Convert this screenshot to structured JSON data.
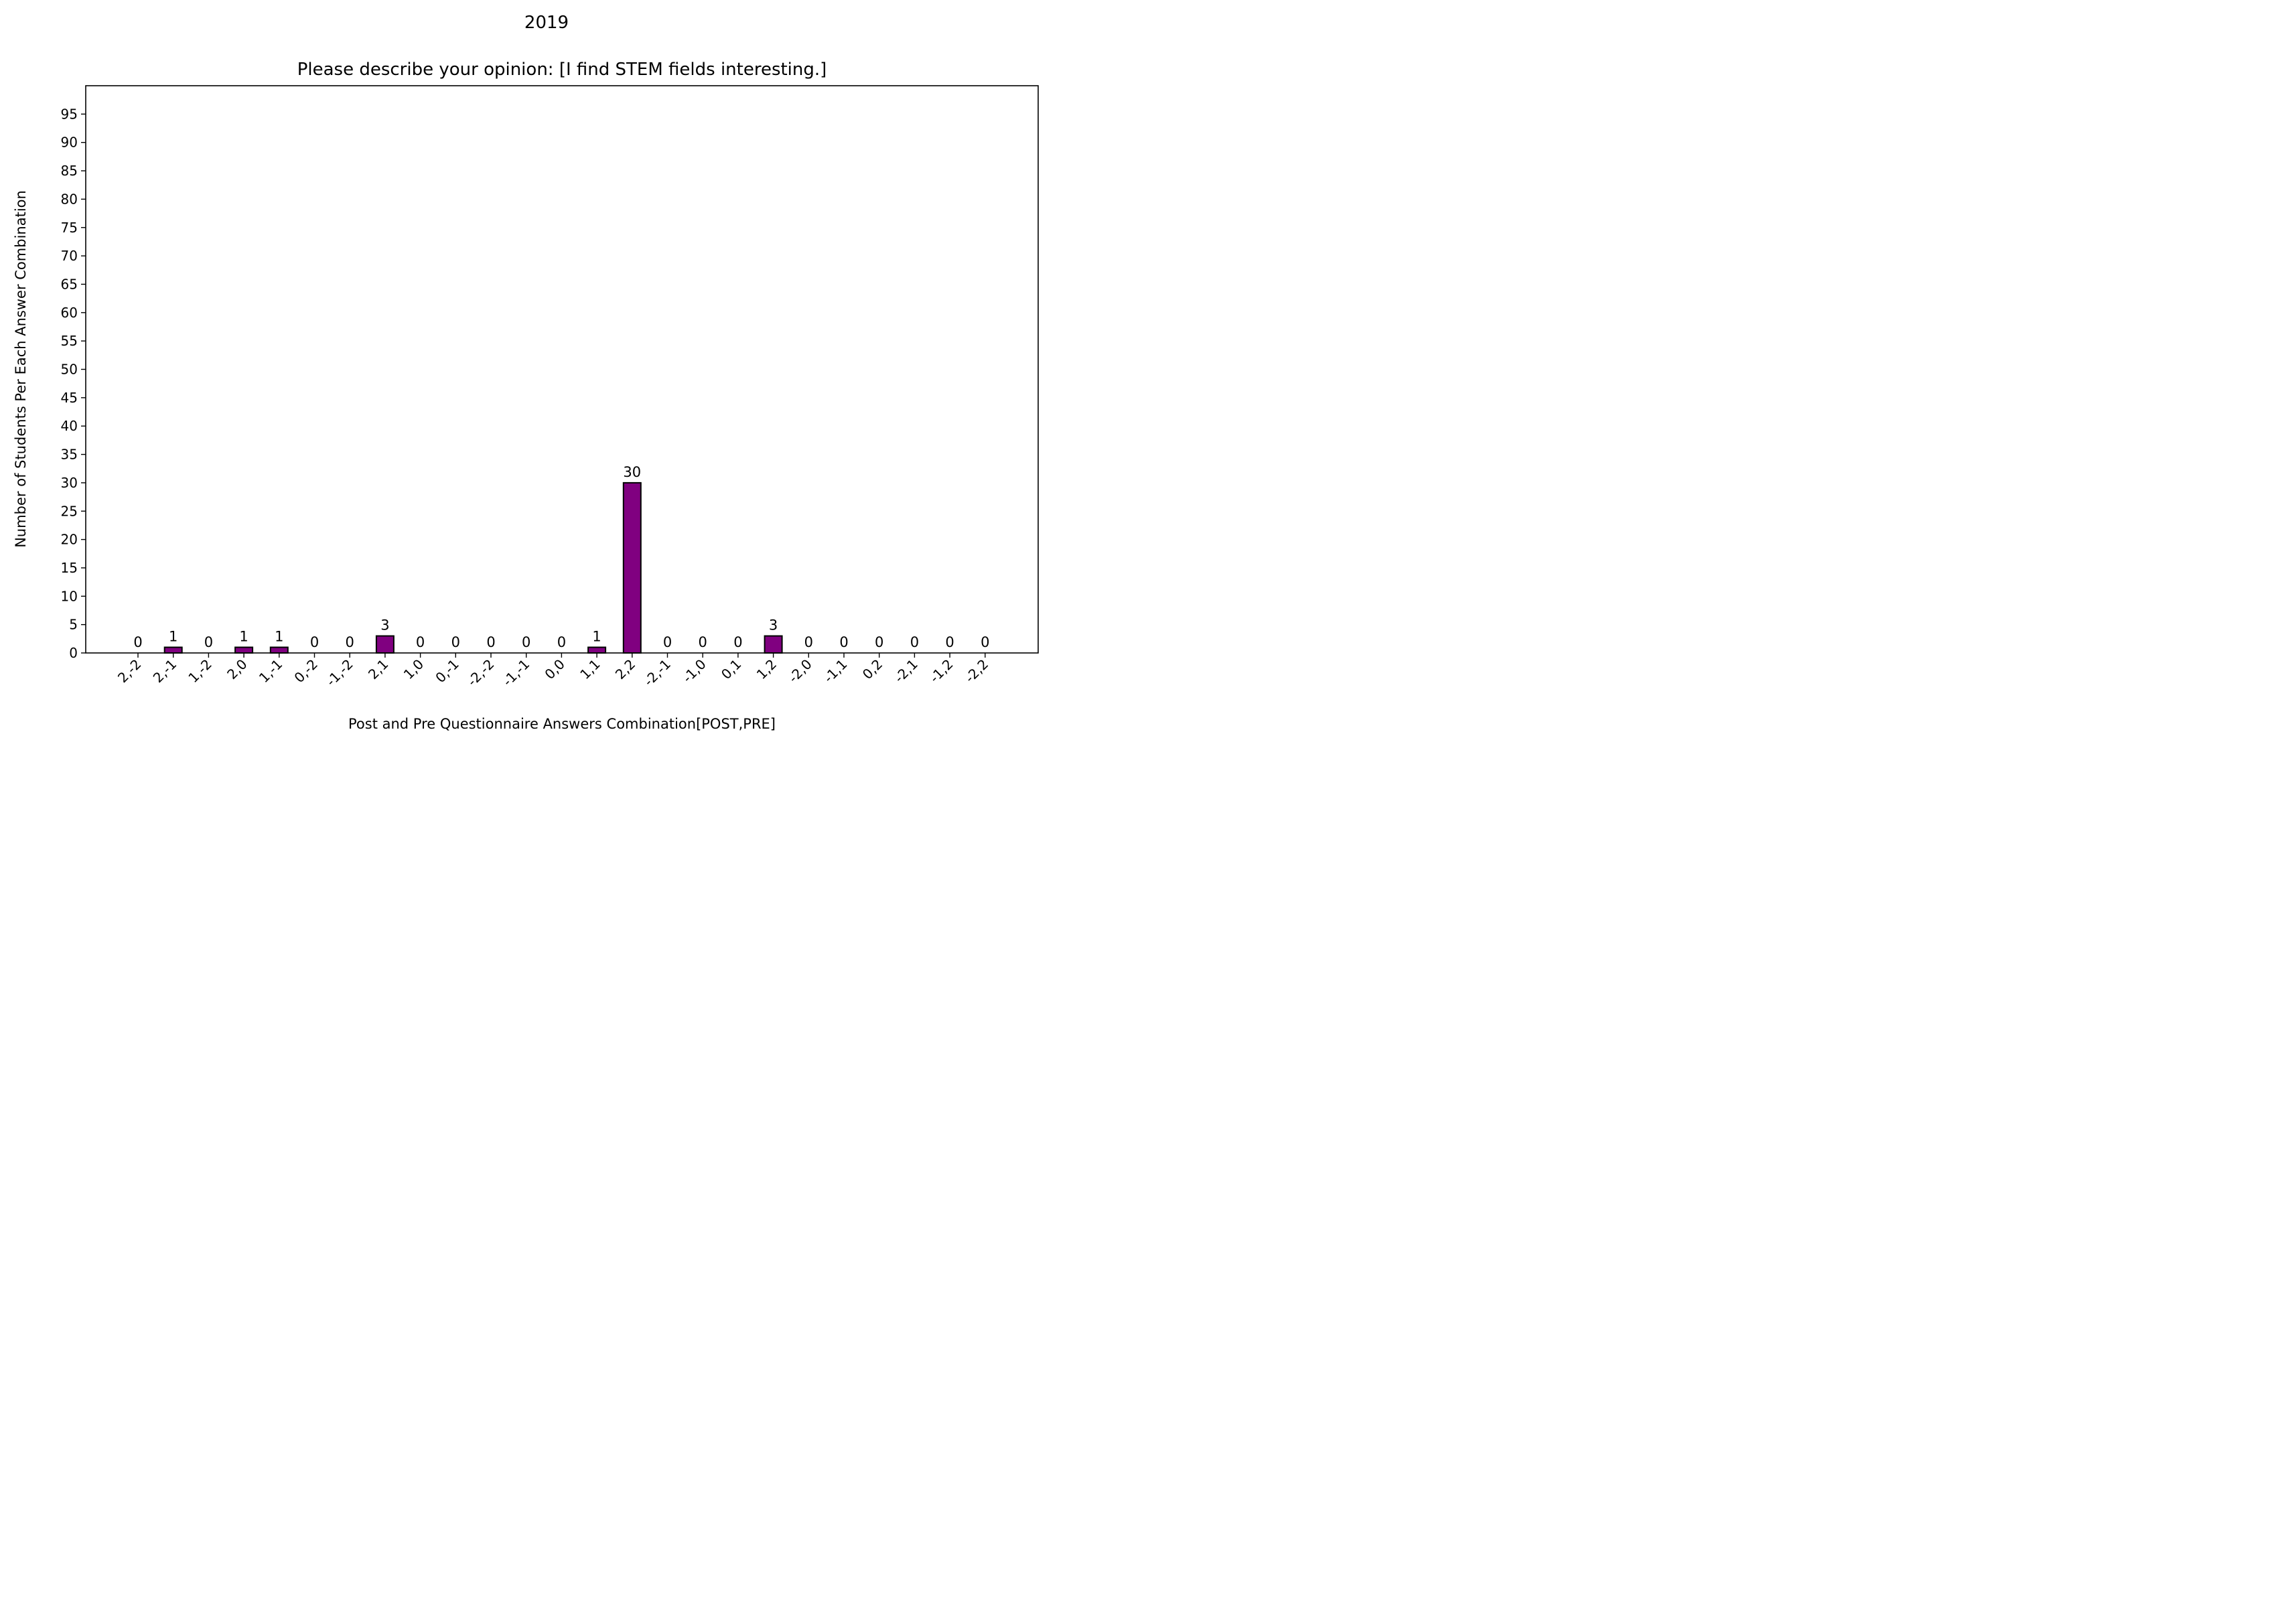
{
  "chart_data": {
    "type": "bar",
    "suptitle": "2019",
    "title": "Please describe your opinion: [I find STEM fields interesting.]",
    "xlabel": "Post and Pre Questionnaire Answers Combination[POST,PRE]",
    "ylabel": "Number of Students Per Each Answer Combination",
    "ylim": [
      0,
      100
    ],
    "yticks": [
      0,
      5,
      10,
      15,
      20,
      25,
      30,
      35,
      40,
      45,
      50,
      55,
      60,
      65,
      70,
      75,
      80,
      85,
      90,
      95
    ],
    "bar_color": "#800080",
    "bar_edge_color": "#000000",
    "categories": [
      "2,-2",
      "2,-1",
      "1,-2",
      "2,0",
      "1,-1",
      "0,-2",
      "-1,-2",
      "2,1",
      "1,0",
      "0,-1",
      "-2,-2",
      "-1,-1",
      "0,0",
      "1,1",
      "2,2",
      "-2,-1",
      "-1,0",
      "0,1",
      "1,2",
      "-2,0",
      "-1,1",
      "0,2",
      "-2,1",
      "-1,2",
      "-2,2"
    ],
    "values": [
      0,
      1,
      0,
      1,
      1,
      0,
      0,
      3,
      0,
      0,
      0,
      0,
      0,
      1,
      30,
      0,
      0,
      0,
      3,
      0,
      0,
      0,
      0,
      0,
      0
    ],
    "data_labels": [
      "0",
      "1",
      "0",
      "1",
      "1",
      "0",
      "0",
      "3",
      "0",
      "0",
      "0",
      "0",
      "0",
      "1",
      "30",
      "0",
      "0",
      "0",
      "3",
      "0",
      "0",
      "0",
      "0",
      "0",
      "0"
    ]
  }
}
